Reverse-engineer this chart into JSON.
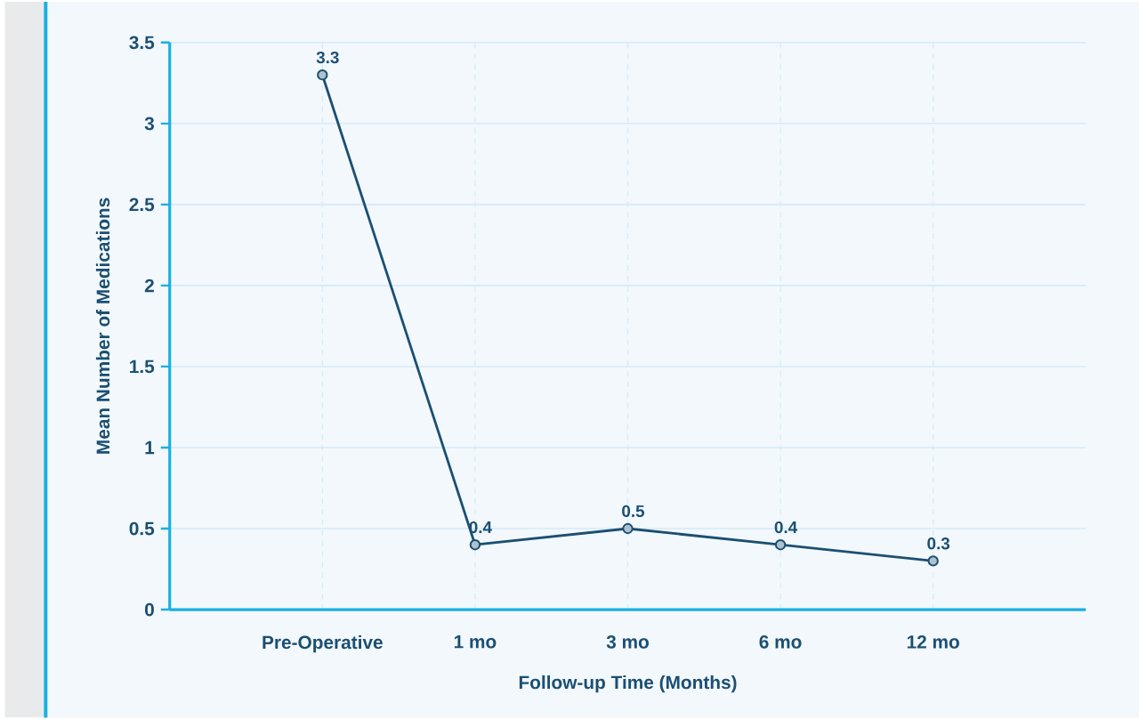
{
  "chart_data": {
    "type": "line",
    "xlabel": "Follow-up Time (Months)",
    "ylabel": "Mean Number of Medications",
    "categories": [
      "Pre-Operative",
      "1 mo",
      "3 mo",
      "6 mo",
      "12 mo"
    ],
    "values": [
      3.3,
      0.4,
      0.5,
      0.4,
      0.3
    ],
    "color": "#1b4f72",
    "ylim": [
      0,
      3.5
    ],
    "yticks": [
      0,
      0.5,
      1,
      1.5,
      2,
      2.5,
      3,
      3.5
    ],
    "grid": true,
    "marker": "circle",
    "line_style": "solid",
    "data_labels": true
  }
}
